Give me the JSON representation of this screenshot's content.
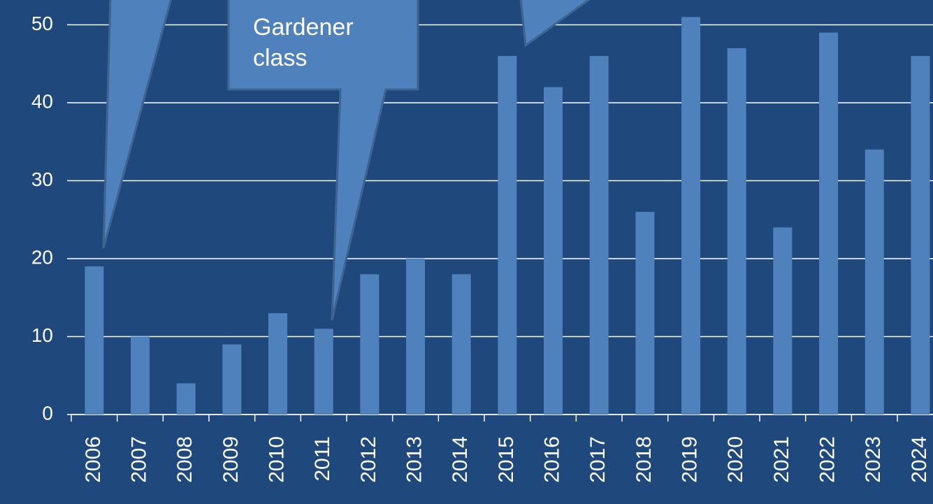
{
  "chart_data": {
    "type": "bar",
    "categories": [
      "2006",
      "2007",
      "2008",
      "2009",
      "2010",
      "2011",
      "2012",
      "2013",
      "2014",
      "2015",
      "2016",
      "2017",
      "2018",
      "2019",
      "2020",
      "2021",
      "2022",
      "2023",
      "2024"
    ],
    "values": [
      19,
      10,
      4,
      9,
      13,
      11,
      18,
      20,
      18,
      46,
      42,
      46,
      26,
      51,
      47,
      24,
      49,
      34,
      46
    ],
    "color": "#4f81bd",
    "ylim": [
      0,
      53
    ],
    "yticks": [
      0,
      10,
      20,
      30,
      40,
      50
    ],
    "grid": true,
    "annotations": [
      "Gardener class"
    ]
  }
}
